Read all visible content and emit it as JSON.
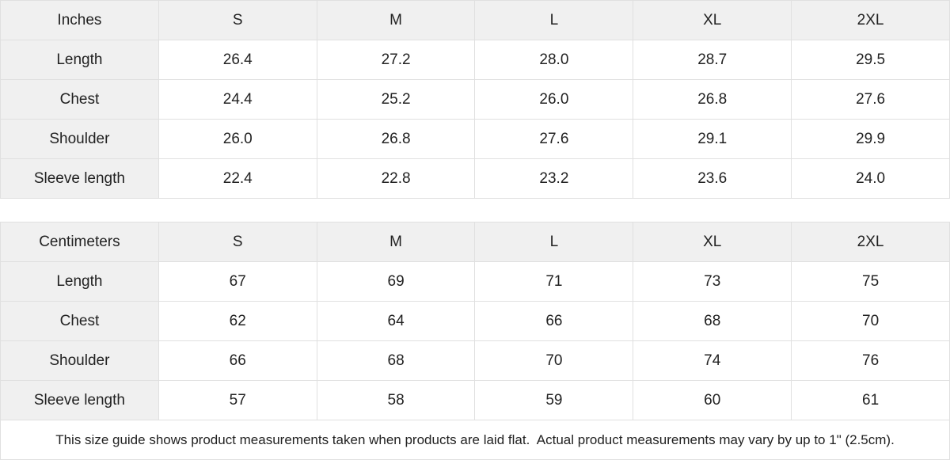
{
  "colors": {
    "header_bg": "#f0f0f0",
    "cell_bg": "#ffffff",
    "border": "#e0e0e0",
    "text": "#222222"
  },
  "size_guide": {
    "tables": [
      {
        "unit_label": "Inches",
        "size_headers": [
          "S",
          "M",
          "L",
          "XL",
          "2XL"
        ],
        "rows": [
          {
            "label": "Length",
            "values": [
              "26.4",
              "27.2",
              "28.0",
              "28.7",
              "29.5"
            ]
          },
          {
            "label": "Chest",
            "values": [
              "24.4",
              "25.2",
              "26.0",
              "26.8",
              "27.6"
            ]
          },
          {
            "label": "Shoulder",
            "values": [
              "26.0",
              "26.8",
              "27.6",
              "29.1",
              "29.9"
            ]
          },
          {
            "label": "Sleeve length",
            "values": [
              "22.4",
              "22.8",
              "23.2",
              "23.6",
              "24.0"
            ]
          }
        ]
      },
      {
        "unit_label": "Centimeters",
        "size_headers": [
          "S",
          "M",
          "L",
          "XL",
          "2XL"
        ],
        "rows": [
          {
            "label": "Length",
            "values": [
              "67",
              "69",
              "71",
              "73",
              "75"
            ]
          },
          {
            "label": "Chest",
            "values": [
              "62",
              "64",
              "66",
              "68",
              "70"
            ]
          },
          {
            "label": "Shoulder",
            "values": [
              "66",
              "68",
              "70",
              "74",
              "76"
            ]
          },
          {
            "label": "Sleeve length",
            "values": [
              "57",
              "58",
              "59",
              "60",
              "61"
            ]
          }
        ]
      }
    ],
    "footer_note": "This size guide shows product measurements taken when products are laid flat.  Actual product measurements may vary by up to 1\" (2.5cm)."
  },
  "chart_data": [
    {
      "type": "table",
      "title": "Size guide (Inches)",
      "columns": [
        "Inches",
        "S",
        "M",
        "L",
        "XL",
        "2XL"
      ],
      "rows": [
        [
          "Length",
          26.4,
          27.2,
          28.0,
          28.7,
          29.5
        ],
        [
          "Chest",
          24.4,
          25.2,
          26.0,
          26.8,
          27.6
        ],
        [
          "Shoulder",
          26.0,
          26.8,
          27.6,
          29.1,
          29.9
        ],
        [
          "Sleeve length",
          22.4,
          22.8,
          23.2,
          23.6,
          24.0
        ]
      ]
    },
    {
      "type": "table",
      "title": "Size guide (Centimeters)",
      "columns": [
        "Centimeters",
        "S",
        "M",
        "L",
        "XL",
        "2XL"
      ],
      "rows": [
        [
          "Length",
          67,
          69,
          71,
          73,
          75
        ],
        [
          "Chest",
          62,
          64,
          66,
          68,
          70
        ],
        [
          "Shoulder",
          66,
          68,
          70,
          74,
          76
        ],
        [
          "Sleeve length",
          57,
          58,
          59,
          60,
          61
        ]
      ]
    }
  ]
}
